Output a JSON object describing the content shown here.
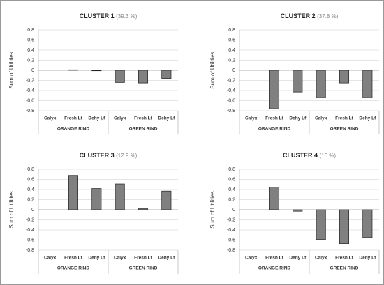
{
  "chart_data": [
    {
      "type": "bar",
      "title": "CLUSTER 1",
      "subtitle": "(39.3 %)",
      "ylabel": "Sum of Utilities",
      "categories": [
        "Calyx",
        "Fresh Lf",
        "Dehy Lf",
        "Calyx",
        "Fresh Lf",
        "Dehy Lf"
      ],
      "groups": [
        "ORANGE RIND",
        "GREEN RIND"
      ],
      "values": [
        0,
        0.01,
        -0.01,
        -0.24,
        -0.25,
        -0.16
      ],
      "color": "#808080",
      "grid": true,
      "ylim": [
        -0.8,
        0.8
      ],
      "yticks": [
        {
          "value": -0.8,
          "label": "-0,8"
        },
        {
          "value": -0.6,
          "label": "-0,6"
        },
        {
          "value": -0.4,
          "label": "-0,4"
        },
        {
          "value": -0.2,
          "label": "-0,2"
        },
        0,
        {
          "value": 0.2,
          "label": "0,2"
        },
        {
          "value": 0.4,
          "label": "0,4"
        },
        {
          "value": 0.6,
          "label": "0,6"
        },
        {
          "value": 0.8,
          "label": "0,8"
        }
      ]
    },
    {
      "type": "bar",
      "title": "CLUSTER 2",
      "subtitle": "(37.8 %)",
      "ylabel": "Sum of Utilities",
      "categories": [
        "Calyx",
        "Fresh Lf",
        "Dehy Lf",
        "Calyx",
        "Fresh Lf",
        "Dehy Lf"
      ],
      "groups": [
        "ORANGE RIND",
        "GREEN RIND"
      ],
      "values": [
        0,
        -0.76,
        -0.43,
        -0.54,
        -0.25,
        -0.54
      ],
      "color": "#808080",
      "grid": true,
      "ylim": [
        -0.8,
        0.8
      ],
      "yticks": [
        {
          "value": -0.8,
          "label": "-0,8"
        },
        {
          "value": -0.6,
          "label": "-0,6"
        },
        {
          "value": -0.4,
          "label": "-0,4"
        },
        {
          "value": -0.2,
          "label": "-0,2"
        },
        0,
        {
          "value": 0.2,
          "label": "0,2"
        },
        {
          "value": 0.4,
          "label": "0,4"
        },
        {
          "value": 0.6,
          "label": "0,6"
        },
        {
          "value": 0.8,
          "label": "0,8"
        }
      ]
    },
    {
      "type": "bar",
      "title": "CLUSTER 3",
      "subtitle": "(12.9 %)",
      "ylabel": "Sum of Utilities",
      "categories": [
        "Calyx",
        "Fresh Lf",
        "Dehy Lf",
        "Calyx",
        "Fresh Lf",
        "Dehy Lf"
      ],
      "groups": [
        "ORANGE RIND",
        "GREEN RIND"
      ],
      "values": [
        0,
        0.68,
        0.42,
        0.51,
        0.02,
        0.37
      ],
      "color": "#808080",
      "grid": true,
      "ylim": [
        -0.8,
        0.8
      ],
      "yticks": [
        {
          "value": -0.8,
          "label": "-0,8"
        },
        {
          "value": -0.6,
          "label": "-0,6"
        },
        {
          "value": -0.4,
          "label": "-0,4"
        },
        {
          "value": -0.2,
          "label": "-0,2"
        },
        0,
        {
          "value": 0.2,
          "label": "0,2"
        },
        {
          "value": 0.4,
          "label": "0,4"
        },
        {
          "value": 0.6,
          "label": "0,6"
        },
        {
          "value": 0.8,
          "label": "0,8"
        }
      ]
    },
    {
      "type": "bar",
      "title": "CLUSTER 4",
      "subtitle": "(10 %)",
      "ylabel": "Sum of Utilities",
      "categories": [
        "Calyx",
        "Fresh Lf",
        "Dehy Lf",
        "Calyx",
        "Fresh Lf",
        "Dehy Lf"
      ],
      "groups": [
        "ORANGE RIND",
        "GREEN RIND"
      ],
      "values": [
        0,
        0.45,
        -0.03,
        -0.59,
        -0.67,
        -0.55
      ],
      "color": "#808080",
      "grid": true,
      "ylim": [
        -0.8,
        0.8
      ],
      "yticks": [
        {
          "value": -0.8,
          "label": "-0,8"
        },
        {
          "value": -0.6,
          "label": "-0,6"
        },
        {
          "value": -0.4,
          "label": "-0,4"
        },
        {
          "value": -0.2,
          "label": "-0,2"
        },
        0,
        {
          "value": 0.2,
          "label": "0,2"
        },
        {
          "value": 0.4,
          "label": "0,4"
        },
        {
          "value": 0.6,
          "label": "0,6"
        },
        {
          "value": 0.8,
          "label": "0,8"
        }
      ]
    }
  ]
}
